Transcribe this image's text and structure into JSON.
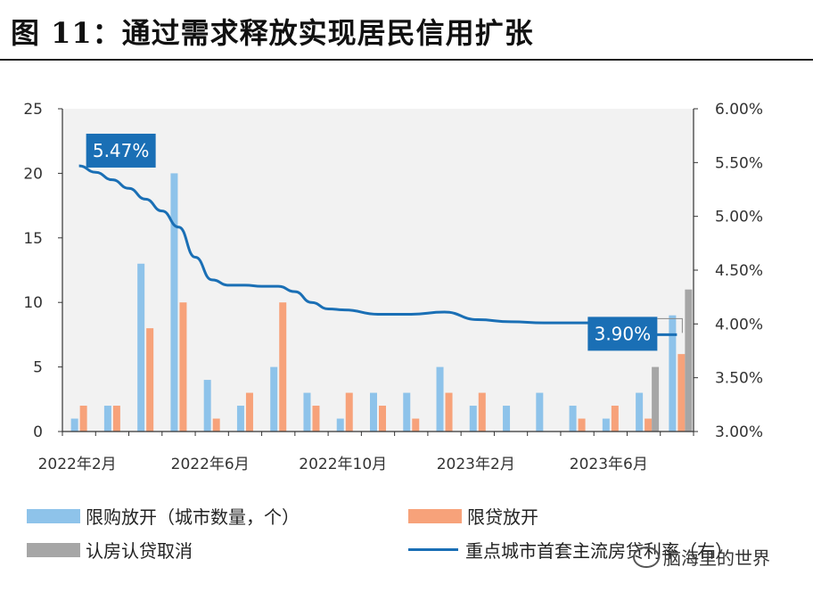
{
  "figure": {
    "title": "图 11：通过需求释放实现居民信用扩张",
    "watermark": "脑海里的世界"
  },
  "chart_data": {
    "type": "bar",
    "categories": [
      "2022-02",
      "2022-03",
      "2022-04",
      "2022-05",
      "2022-06",
      "2022-07",
      "2022-08",
      "2022-09",
      "2022-10",
      "2022-11",
      "2022-12",
      "2023-01",
      "2023-02",
      "2023-03",
      "2023-04",
      "2023-05",
      "2023-06",
      "2023-07",
      "2023-08"
    ],
    "x_tick_labels": [
      {
        "index": 0,
        "label": "2022年2月"
      },
      {
        "index": 4,
        "label": "2022年6月"
      },
      {
        "index": 8,
        "label": "2022年10月"
      },
      {
        "index": 12,
        "label": "2023年2月"
      },
      {
        "index": 16,
        "label": "2023年6月"
      }
    ],
    "y_left": {
      "ylim": [
        0,
        25
      ],
      "ticks": [
        "0",
        "5",
        "10",
        "15",
        "20",
        "25"
      ]
    },
    "y_right": {
      "ylim": [
        3.0,
        6.0
      ],
      "ticks": [
        "3.00%",
        "3.50%",
        "4.00%",
        "4.50%",
        "5.00%",
        "5.50%",
        "6.00%"
      ]
    },
    "series": [
      {
        "name": "限购放开（城市数量，个）",
        "kind": "bar",
        "color": "#8ec3ea",
        "values": [
          1,
          2,
          13,
          20,
          4,
          2,
          5,
          3,
          1,
          3,
          3,
          5,
          2,
          2,
          3,
          2,
          1,
          3,
          9
        ]
      },
      {
        "name": "限贷放开",
        "kind": "bar",
        "color": "#f7a27a",
        "values": [
          2,
          2,
          8,
          10,
          1,
          3,
          10,
          2,
          3,
          2,
          1,
          3,
          3,
          0,
          0,
          1,
          2,
          1,
          6
        ]
      },
      {
        "name": "认房认贷取消",
        "kind": "bar",
        "color": "#a6a6a6",
        "values": [
          0,
          0,
          0,
          0,
          0,
          0,
          0,
          0,
          0,
          0,
          0,
          0,
          0,
          0,
          0,
          0,
          0,
          5,
          11
        ]
      },
      {
        "name": "重点城市首套主流房贷利率（右）",
        "kind": "line",
        "color": "#1a6fb5",
        "axis": "right",
        "x": [
          0,
          0.5,
          1,
          1.5,
          2,
          2.5,
          3,
          3.5,
          4,
          4.5,
          5,
          5.5,
          6,
          6.5,
          7,
          7.5,
          8,
          9,
          10,
          11,
          12,
          13,
          14,
          15,
          16,
          16.5,
          17,
          18
        ],
        "values": [
          5.47,
          5.41,
          5.34,
          5.26,
          5.16,
          5.05,
          4.9,
          4.62,
          4.41,
          4.36,
          4.36,
          4.35,
          4.35,
          4.3,
          4.2,
          4.14,
          4.13,
          4.09,
          4.09,
          4.11,
          4.04,
          4.02,
          4.01,
          4.01,
          4.01,
          3.94,
          3.9,
          3.9
        ]
      }
    ],
    "annotations": [
      {
        "label": "5.47%",
        "x": 0,
        "value": 5.47
      },
      {
        "label": "3.90%",
        "x": 18,
        "value": 3.9
      }
    ]
  }
}
